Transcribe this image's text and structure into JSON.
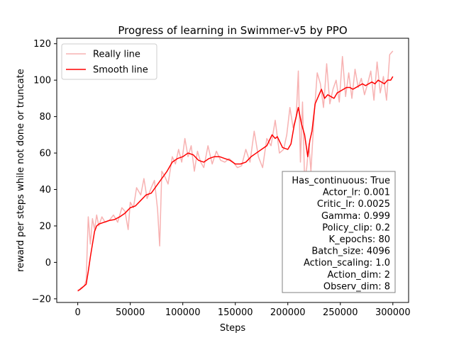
{
  "chart_data": {
    "type": "line",
    "title": "Progress of learning in Swimmer-v5 by PPO",
    "xlabel": "Steps",
    "ylabel": "reward per steps while not done or truncate",
    "xlim": [
      -20000,
      315000
    ],
    "ylim": [
      -22,
      123
    ],
    "xticks": [
      0,
      50000,
      100000,
      150000,
      200000,
      250000,
      300000
    ],
    "xtick_labels": [
      "0",
      "50000",
      "100000",
      "150000",
      "200000",
      "250000",
      "300000"
    ],
    "yticks": [
      -20,
      0,
      20,
      40,
      60,
      80,
      100,
      120
    ],
    "ytick_labels": [
      "−20",
      "0",
      "20",
      "40",
      "60",
      "80",
      "100",
      "120"
    ],
    "grid": false,
    "legend": {
      "placement": "upper-left",
      "entries": [
        "Really line",
        "Smooth line"
      ]
    },
    "series": [
      {
        "name": "Really line",
        "color": "#f7b2b2",
        "x": [
          0,
          3000,
          6000,
          8000,
          10000,
          12000,
          14000,
          16000,
          18000,
          20000,
          23000,
          26000,
          30000,
          34000,
          38000,
          42000,
          45000,
          48000,
          50000,
          53000,
          56000,
          60000,
          63000,
          66000,
          70000,
          73000,
          76000,
          78000,
          80000,
          83000,
          86000,
          90000,
          93000,
          96000,
          99000,
          102000,
          105000,
          108000,
          111000,
          114000,
          117000,
          120000,
          124000,
          128000,
          132000,
          136000,
          140000,
          144000,
          148000,
          152000,
          156000,
          160000,
          164000,
          168000,
          172000,
          176000,
          180000,
          184000,
          188000,
          192000,
          196000,
          199000,
          202000,
          205000,
          208000,
          210000,
          212000,
          214000,
          216000,
          218000,
          220000,
          222000,
          225000,
          228000,
          231000,
          234000,
          237000,
          240000,
          243000,
          246000,
          249000,
          252000,
          255000,
          258000,
          261000,
          264000,
          267000,
          270000,
          273000,
          276000,
          279000,
          282000,
          285000,
          288000,
          291000,
          294000,
          297000,
          300000
        ],
        "y": [
          -16,
          -14,
          -13,
          -10,
          25,
          10,
          24,
          18,
          26,
          20,
          25,
          22,
          23,
          26,
          22,
          30,
          28,
          18,
          33,
          30,
          41,
          37,
          46,
          35,
          41,
          45,
          29,
          9,
          50,
          47,
          43,
          58,
          54,
          62,
          55,
          68,
          58,
          64,
          50,
          61,
          55,
          52,
          64,
          54,
          61,
          56,
          55,
          57,
          55,
          52,
          53,
          62,
          55,
          72,
          58,
          52,
          68,
          64,
          78,
          60,
          62,
          70,
          85,
          74,
          80,
          105,
          55,
          88,
          45,
          52,
          65,
          50,
          80,
          104,
          98,
          85,
          109,
          87,
          95,
          100,
          88,
          113,
          91,
          104,
          90,
          106,
          96,
          101,
          92,
          98,
          105,
          89,
          110,
          93,
          102,
          89,
          114,
          116
        ]
      },
      {
        "name": "Smooth line",
        "color": "#ff0000",
        "x": [
          0,
          2000,
          4000,
          6000,
          8000,
          10000,
          12000,
          14000,
          16000,
          18000,
          20000,
          25000,
          30000,
          35000,
          40000,
          45000,
          50000,
          55000,
          60000,
          65000,
          70000,
          75000,
          80000,
          85000,
          90000,
          95000,
          100000,
          105000,
          110000,
          115000,
          120000,
          125000,
          130000,
          135000,
          140000,
          145000,
          150000,
          155000,
          160000,
          165000,
          170000,
          175000,
          180000,
          185000,
          188000,
          190000,
          195000,
          200000,
          203000,
          206000,
          210000,
          213000,
          216000,
          219000,
          221000,
          223000,
          226000,
          229000,
          232000,
          235000,
          238000,
          241000,
          244000,
          247000,
          250000,
          253000,
          256000,
          259000,
          262000,
          265000,
          268000,
          271000,
          274000,
          277000,
          280000,
          283000,
          286000,
          289000,
          292000,
          295000,
          298000,
          300000
        ],
        "y": [
          -15.5,
          -15,
          -14,
          -13,
          -12,
          -5,
          3,
          10,
          17,
          20,
          21,
          22,
          23,
          23.5,
          25,
          27,
          30,
          31,
          34,
          37,
          38,
          42,
          46,
          50,
          55,
          57,
          58,
          60,
          59,
          56,
          55,
          57,
          58,
          58,
          57,
          56,
          54,
          54,
          55,
          58,
          60,
          62,
          64,
          70,
          68,
          69,
          63,
          62,
          65,
          75,
          85,
          76,
          70,
          58,
          67,
          72,
          87,
          91,
          95,
          90,
          92,
          91,
          90,
          93,
          94,
          95,
          96,
          96,
          95,
          96,
          97,
          98,
          97,
          98,
          99,
          98,
          100,
          99,
          98,
          100,
          100,
          102
        ]
      }
    ]
  },
  "info_box": {
    "lines": [
      "Has_continuous: True",
      "Actor_lr: 0.001",
      "Critic_lr: 0.0025",
      "Gamma: 0.999",
      "Policy_clip: 0.2",
      "K_epochs: 80",
      "Batch_size: 4096",
      "Action_scaling: 1.0",
      "Action_dim: 2",
      "Observ_dim: 8"
    ]
  }
}
